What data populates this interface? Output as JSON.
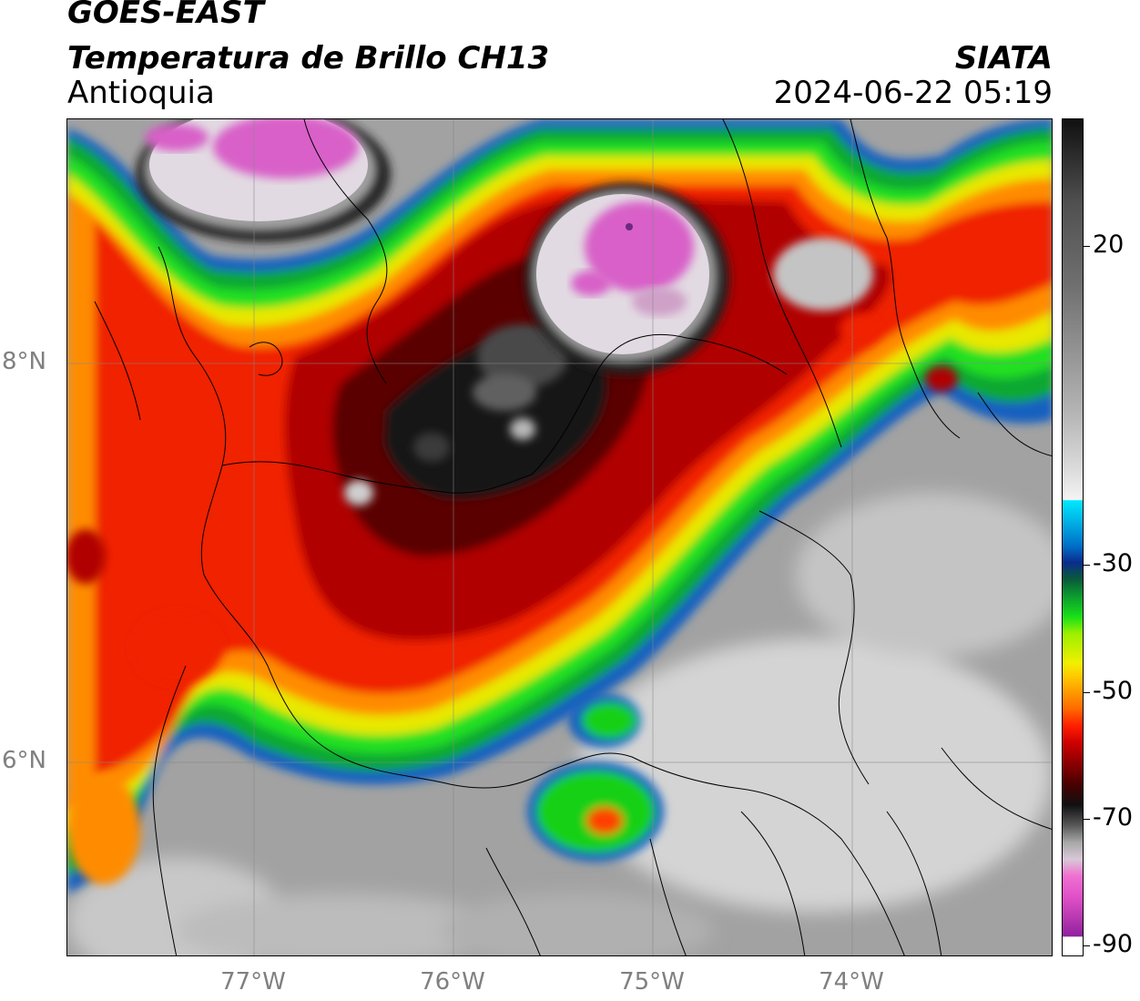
{
  "header": {
    "satellite": "GOES-EAST",
    "product": "Temperatura de Brillo CH13",
    "region": "Antioquia",
    "agency": "SIATA",
    "datetime": "2024-06-22 05:19"
  },
  "axes": {
    "lat_labels": [
      "8°N",
      "6°N"
    ],
    "lon_labels": [
      "77°W",
      "76°W",
      "75°W",
      "74°W"
    ]
  },
  "colorbar": {
    "tick_labels": [
      "20",
      "-30",
      "-50",
      "-70",
      "-90"
    ]
  },
  "colors": {
    "frame": "#000000",
    "axis_label": "#808080",
    "coldest": "#b838b0",
    "cold_core": "#101010",
    "warm_background": "#9a9a9a"
  }
}
